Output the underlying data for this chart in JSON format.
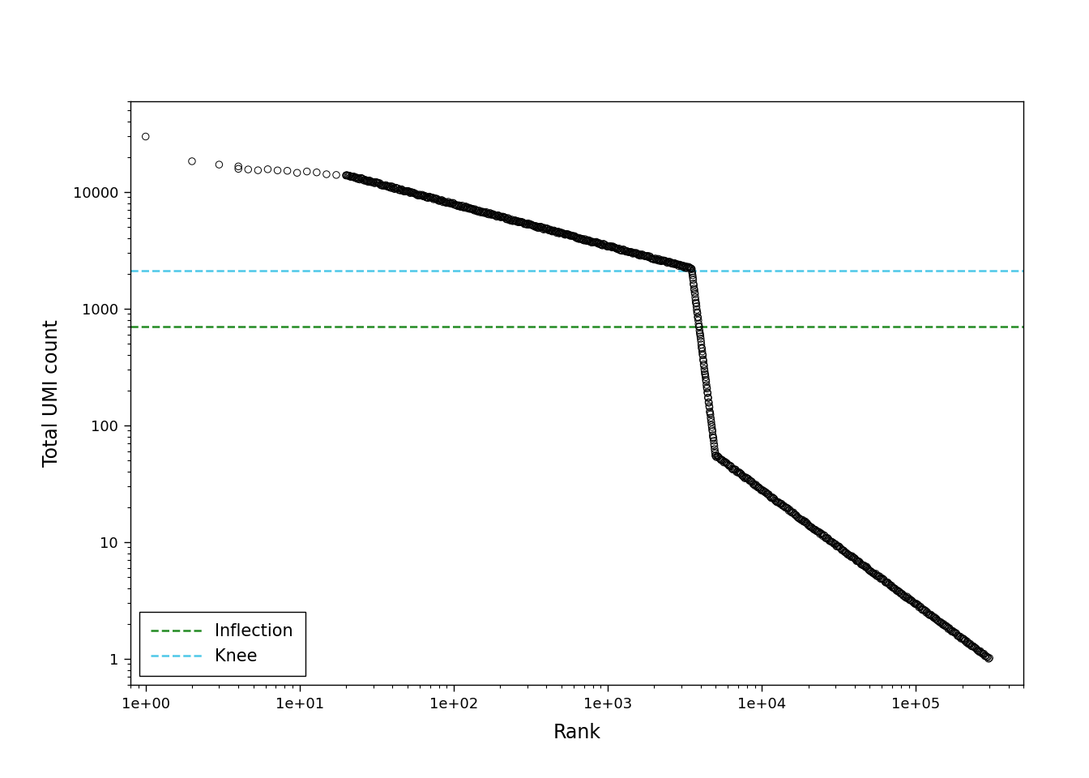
{
  "inflection_value": 700,
  "knee_value": 2100,
  "inflection_color": "#228B22",
  "knee_color": "#4DC8E8",
  "marker_style": "o",
  "marker_size": 3.5,
  "marker_facecolor": "none",
  "marker_edgecolor": "black",
  "marker_linewidth": 0.7,
  "xlabel": "Rank",
  "ylabel": "Total UMI count",
  "xlim_log": [
    0.8,
    500000
  ],
  "ylim_log": [
    0.6,
    60000
  ],
  "background_color": "white",
  "legend_fontsize": 15,
  "axis_label_fontsize": 17,
  "tick_label_fontsize": 13,
  "dashed_linewidth": 1.8,
  "top_rank1_count": 30000,
  "top_rank2_count": 18000,
  "cell_plateau_start": 15000,
  "cell_plateau_end": 2200,
  "knee_rank": 3500,
  "cliff_end_rank": 5000,
  "cliff_end_count": 55,
  "tail_end_rank": 300000,
  "tail_end_count": 1.0
}
